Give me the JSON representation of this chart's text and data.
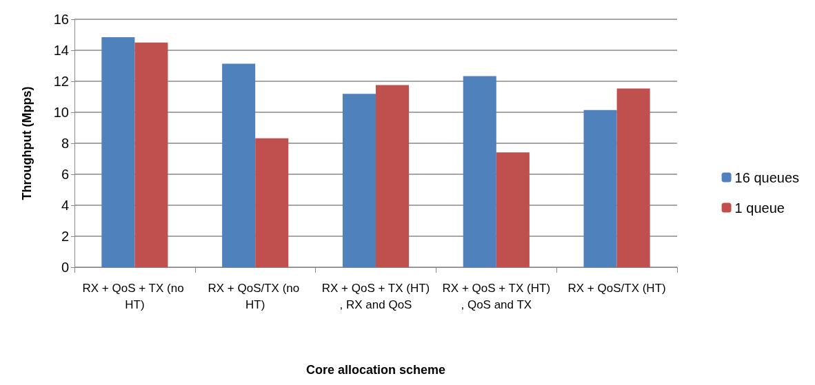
{
  "chart_data": {
    "type": "bar",
    "xlabel": "Core allocation scheme",
    "ylabel": "Throughput (Mpps)",
    "categories": [
      "RX + QoS + TX (no HT)",
      "RX + QoS/TX (no HT)",
      "RX + QoS + TX (HT), RX and QoS",
      "RX + QoS + TX (HT), QoS and TX",
      "RX + QoS/TX (HT)"
    ],
    "series": [
      {
        "name": "16 queues",
        "color": "#4f81bd",
        "values": [
          14.85,
          13.13,
          11.19,
          12.33,
          10.14
        ]
      },
      {
        "name": "1 queue",
        "color": "#c0504d",
        "values": [
          14.5,
          8.32,
          11.76,
          7.41,
          11.53
        ]
      }
    ],
    "ylim": [
      0,
      16
    ],
    "yticks": [
      0,
      2,
      4,
      6,
      8,
      10,
      12,
      14,
      16
    ],
    "grid": "y",
    "legend": "right"
  }
}
